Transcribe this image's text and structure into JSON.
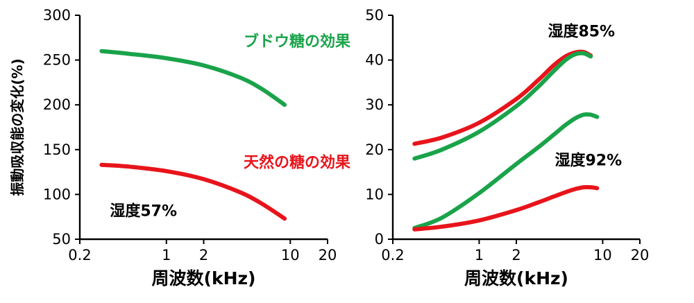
{
  "colors": {
    "green": "#1aa34a",
    "red": "#e8141b",
    "axis": "#000000"
  },
  "chart_data": [
    {
      "type": "line",
      "x_scale": "log",
      "xlabel": "周波数(kHz)",
      "ylabel": "振動吸収能の変化(%)",
      "xlim": [
        0.2,
        20
      ],
      "ylim": [
        50,
        300
      ],
      "x_ticks": [
        0.2,
        1,
        2,
        10,
        20
      ],
      "x_tick_labels": [
        "0.2",
        "1",
        "2",
        "10",
        "20"
      ],
      "y_ticks": [
        50,
        100,
        150,
        200,
        250,
        300
      ],
      "y_tick_labels": [
        "50",
        "100",
        "150",
        "200",
        "250",
        "300"
      ],
      "series": [
        {
          "color": "green",
          "x": [
            0.3,
            0.5,
            1,
            2,
            4,
            6,
            9
          ],
          "y": [
            260,
            257,
            252,
            244,
            230,
            217,
            200
          ]
        },
        {
          "color": "red",
          "x": [
            0.3,
            0.5,
            1,
            2,
            4,
            6,
            9
          ],
          "y": [
            133,
            131,
            126,
            117,
            102,
            89,
            73
          ]
        }
      ],
      "annotations": [
        {
          "text": "ブドウ糖の効果",
          "color": "green",
          "x": 4.2,
          "y": 265
        },
        {
          "text": "天然の糖の効果",
          "color": "red",
          "x": 4.2,
          "y": 130
        },
        {
          "text": "湿度57%",
          "color": "axis",
          "x": 0.35,
          "y": 76
        }
      ]
    },
    {
      "type": "line",
      "x_scale": "log",
      "xlabel": "周波数(kHz)",
      "ylabel": "",
      "xlim": [
        0.2,
        20
      ],
      "ylim": [
        0,
        50
      ],
      "x_ticks": [
        0.2,
        1,
        2,
        10,
        20
      ],
      "x_tick_labels": [
        "0.2",
        "1",
        "2",
        "10",
        "20"
      ],
      "y_ticks": [
        0,
        10,
        20,
        30,
        40,
        50
      ],
      "y_tick_labels": [
        "0",
        "10",
        "20",
        "30",
        "40",
        "50"
      ],
      "series": [
        {
          "color": "red",
          "x": [
            0.3,
            0.5,
            1,
            2,
            3,
            4,
            5,
            6,
            7,
            8
          ],
          "y": [
            21.3,
            22.7,
            26,
            31.3,
            35.5,
            38.8,
            40.8,
            41.7,
            41.8,
            41
          ]
        },
        {
          "color": "green",
          "x": [
            0.3,
            0.5,
            1,
            2,
            3,
            4,
            5,
            6,
            7,
            8
          ],
          "y": [
            18,
            20,
            24,
            29.7,
            34,
            37.5,
            40,
            41.3,
            41.5,
            40.8
          ]
        },
        {
          "color": "green",
          "x": [
            0.3,
            0.5,
            1,
            2,
            3,
            4,
            5,
            6,
            7,
            8,
            9
          ],
          "y": [
            2.5,
            4.8,
            10.3,
            16.8,
            20.5,
            23.3,
            25.5,
            27,
            27.8,
            27.8,
            27.3
          ]
        },
        {
          "color": "red",
          "x": [
            0.3,
            0.5,
            1,
            2,
            3,
            4,
            5,
            6,
            7,
            8,
            9
          ],
          "y": [
            2.2,
            2.8,
            4.2,
            6.5,
            8.2,
            9.5,
            10.5,
            11.2,
            11.6,
            11.6,
            11.4
          ]
        }
      ],
      "annotations": [
        {
          "text": "湿度85%",
          "color": "axis",
          "x": 3.6,
          "y": 45.3
        },
        {
          "text": "湿度92%",
          "color": "axis",
          "x": 4.1,
          "y": 16.5
        }
      ]
    }
  ]
}
